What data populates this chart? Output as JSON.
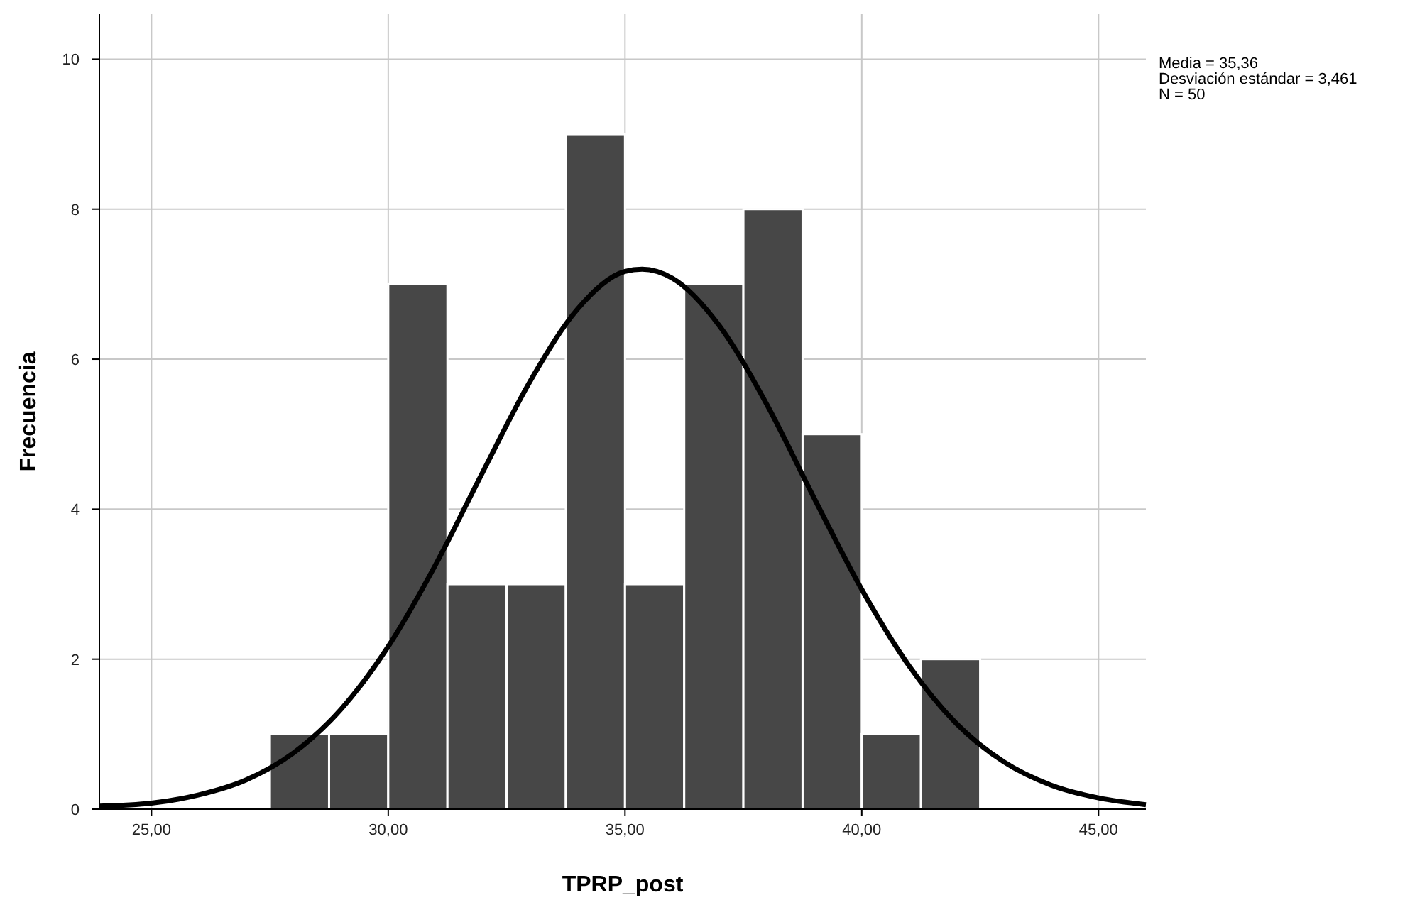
{
  "chart_data": {
    "type": "histogram",
    "xlabel": "TPRP_post",
    "ylabel": "Frecuencia",
    "bins": [
      27.5,
      28.75,
      30,
      31.25,
      32.5,
      33.75,
      35,
      36.25,
      37.5,
      38.75,
      40,
      41.25,
      42.5
    ],
    "values": [
      1,
      1,
      7,
      3,
      3,
      9,
      3,
      7,
      8,
      5,
      1,
      2
    ],
    "color": "#474747",
    "series": [
      {
        "type": "line",
        "color": "#000000",
        "x": [
          23.9,
          25,
          26,
          27,
          28,
          29,
          30,
          31,
          32,
          33,
          34,
          35,
          35.36,
          36,
          37,
          38,
          39,
          40,
          41,
          42,
          43,
          44,
          45,
          46
        ],
        "values": [
          0.04,
          0.08,
          0.19,
          0.39,
          0.75,
          1.33,
          2.17,
          3.26,
          4.5,
          5.71,
          6.67,
          7.17,
          7.2,
          7.08,
          6.44,
          5.39,
          4.14,
          2.93,
          1.91,
          1.14,
          0.63,
          0.32,
          0.15,
          0.06
        ]
      }
    ],
    "xlim": [
      23.9,
      46
    ],
    "ylim": [
      0,
      10.6
    ],
    "xticks": [
      {
        "value": 25,
        "label": "25,00"
      },
      {
        "value": 30,
        "label": "30,00"
      },
      {
        "value": 35,
        "label": "35,00"
      },
      {
        "value": 40,
        "label": "40,00"
      },
      {
        "value": 45,
        "label": "45,00"
      }
    ],
    "yticks": [
      0,
      2,
      4,
      6,
      8,
      10
    ],
    "grid": true,
    "annotations": [
      "Media = 35,36",
      "Desviación estándar = 3,461",
      "N = 50"
    ]
  }
}
